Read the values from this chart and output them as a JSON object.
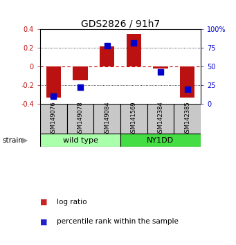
{
  "title": "GDS2826 / 91h7",
  "samples": [
    "GSM149076",
    "GSM149078",
    "GSM149084",
    "GSM141569",
    "GSM142384",
    "GSM142385"
  ],
  "log_ratios": [
    -0.33,
    -0.15,
    0.22,
    0.35,
    -0.02,
    -0.33
  ],
  "percentile_ranks": [
    10,
    22,
    78,
    82,
    43,
    20
  ],
  "groups": [
    {
      "label": "wild type",
      "indices": [
        0,
        1,
        2
      ],
      "color": "#AAFFAA"
    },
    {
      "label": "NY1DD",
      "indices": [
        3,
        4,
        5
      ],
      "color": "#44DD44"
    }
  ],
  "group_row_label": "strain",
  "ylim_left": [
    -0.4,
    0.4
  ],
  "ylim_right": [
    0,
    100
  ],
  "yticks_left": [
    -0.4,
    -0.2,
    0.0,
    0.2,
    0.4
  ],
  "yticks_right": [
    0,
    25,
    50,
    75,
    100
  ],
  "bar_color": "#BB1111",
  "dot_color": "#0000CC",
  "zero_line_color": "#CC0000",
  "grid_color": "black",
  "sample_box_color": "#C8C8C8",
  "bar_width": 0.55,
  "title_fontsize": 10,
  "tick_fontsize": 7,
  "label_fontsize": 8,
  "legend_fontsize": 7.5,
  "legend_marker_red": "#CC2222",
  "legend_marker_blue": "#2222CC"
}
